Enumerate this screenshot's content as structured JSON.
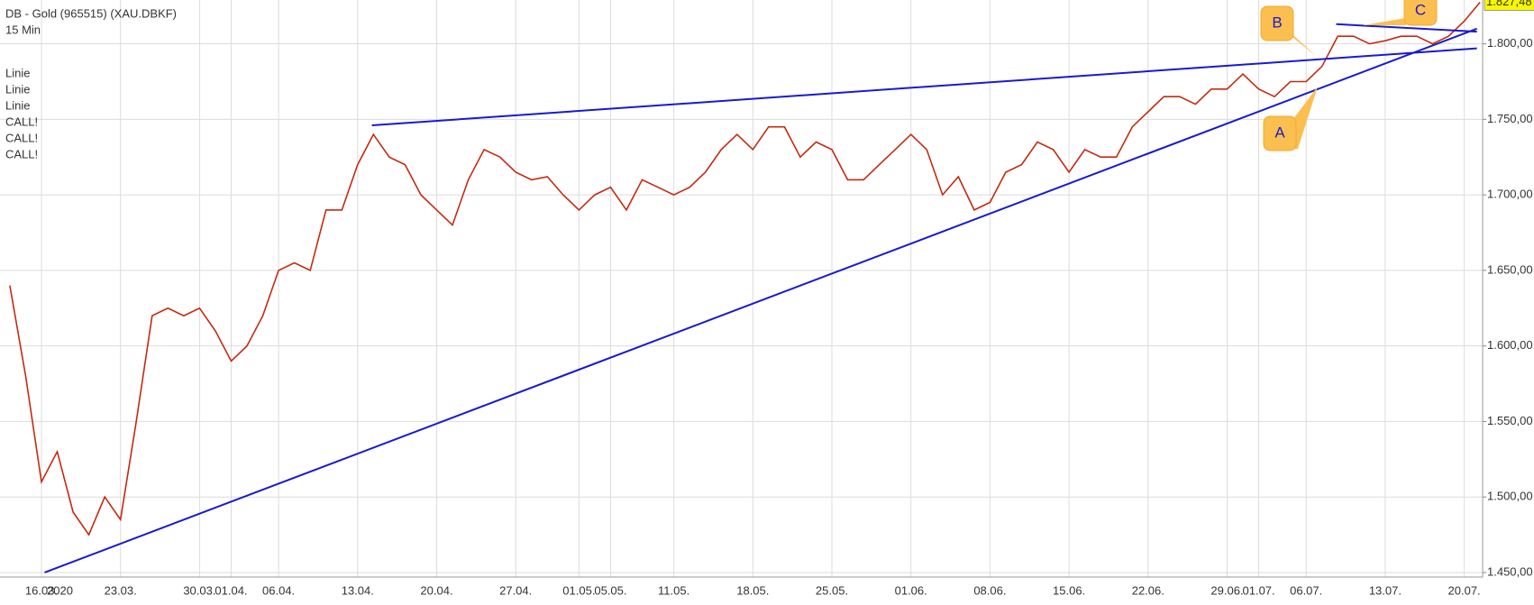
{
  "chart_data": {
    "type": "line",
    "title": "DB - Gold (965515) (XAU.DBKF)",
    "subtitle": "15 Min",
    "year_label": "2020",
    "categories": [
      null,
      null,
      "16.03.",
      null,
      null,
      null,
      null,
      "23.03.",
      null,
      null,
      null,
      null,
      "30.03.",
      null,
      "01.04.",
      null,
      null,
      "06.04.",
      null,
      null,
      null,
      null,
      "13.04.",
      null,
      null,
      null,
      null,
      "20.04.",
      null,
      null,
      null,
      null,
      "27.04.",
      null,
      null,
      null,
      "01.05.",
      null,
      "05.05.",
      null,
      null,
      null,
      "11.05.",
      null,
      null,
      null,
      null,
      "18.05.",
      null,
      null,
      null,
      null,
      "25.05.",
      null,
      null,
      null,
      null,
      "01.06.",
      null,
      null,
      null,
      null,
      "08.06.",
      null,
      null,
      null,
      null,
      "15.06.",
      null,
      null,
      null,
      null,
      "22.06.",
      null,
      null,
      null,
      null,
      "29.06.",
      null,
      "01.07.",
      null,
      null,
      "06.07.",
      null,
      null,
      null,
      null,
      "13.07.",
      null,
      null,
      null,
      null,
      "20.07.",
      null
    ],
    "series": [
      {
        "name": "Gold",
        "color": "#c42a10",
        "values": [
          1640,
          1580,
          1510,
          1530,
          1490,
          1475,
          1500,
          1485,
          1550,
          1620,
          1625,
          1620,
          1625,
          1610,
          1590,
          1600,
          1620,
          1650,
          1655,
          1650,
          1690,
          1690,
          1720,
          1740,
          1725,
          1720,
          1700,
          1690,
          1680,
          1710,
          1730,
          1725,
          1715,
          1710,
          1712,
          1700,
          1690,
          1700,
          1705,
          1690,
          1710,
          1705,
          1700,
          1705,
          1715,
          1730,
          1740,
          1730,
          1745,
          1745,
          1725,
          1735,
          1730,
          1710,
          1710,
          1720,
          1730,
          1740,
          1730,
          1700,
          1712,
          1690,
          1695,
          1715,
          1720,
          1735,
          1730,
          1715,
          1730,
          1725,
          1725,
          1745,
          1755,
          1765,
          1765,
          1760,
          1770,
          1770,
          1780,
          1770,
          1765,
          1775,
          1775,
          1785,
          1805,
          1805,
          1800,
          1802,
          1805,
          1805,
          1800,
          1805,
          1815,
          1827.48
        ]
      }
    ],
    "last_price": {
      "value": 1827.48,
      "label": "1.827,48"
    },
    "ylim": [
      1447,
      1829
    ],
    "yticks": [
      {
        "value": 1450,
        "label": "1.450,00"
      },
      {
        "value": 1500,
        "label": "1.500,00"
      },
      {
        "value": 1550,
        "label": "1.550,00"
      },
      {
        "value": 1600,
        "label": "1.600,00"
      },
      {
        "value": 1650,
        "label": "1.650,00"
      },
      {
        "value": 1700,
        "label": "1.700,00"
      },
      {
        "value": 1750,
        "label": "1.750,00"
      },
      {
        "value": 1800,
        "label": "1.800,00"
      }
    ],
    "grid": true,
    "trend_lines": [
      {
        "name": "Linie",
        "color": "#1a1acc",
        "values": [
          1746,
          1797
        ]
      },
      {
        "name": "Linie",
        "color": "#1a1acc",
        "values": [
          1450,
          1810
        ]
      },
      {
        "name": "Linie",
        "color": "#1a1acc",
        "values": [
          1813,
          1808
        ]
      }
    ],
    "signals": [
      "CALL!",
      "CALL!",
      "CALL!"
    ],
    "callouts": [
      "A",
      "B",
      "C"
    ]
  }
}
